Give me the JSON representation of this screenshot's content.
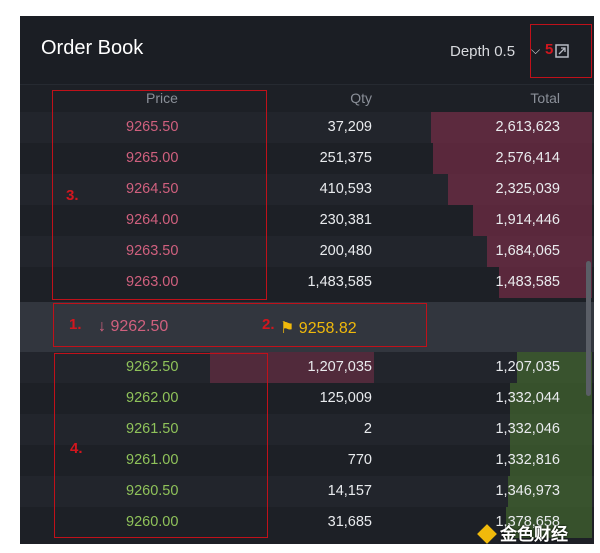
{
  "header": {
    "title": "Order Book",
    "depth_label": "Depth 0.5"
  },
  "columns": {
    "price": "Price",
    "qty": "Qty",
    "total": "Total"
  },
  "asks": [
    {
      "price": "9265.50",
      "qty": "37,209",
      "total": "2,613,623",
      "depth": 0.92
    },
    {
      "price": "9265.00",
      "qty": "251,375",
      "total": "2,576,414",
      "depth": 0.91
    },
    {
      "price": "9264.50",
      "qty": "410,593",
      "total": "2,325,039",
      "depth": 0.82
    },
    {
      "price": "9264.00",
      "qty": "230,381",
      "total": "1,914,446",
      "depth": 0.68
    },
    {
      "price": "9263.50",
      "qty": "200,480",
      "total": "1,684,065",
      "depth": 0.6
    },
    {
      "price": "9263.00",
      "qty": "1,483,585",
      "total": "1,483,585",
      "depth": 0.53
    }
  ],
  "mid": {
    "last_price": "9262.50",
    "mark_price": "9258.82"
  },
  "bids": [
    {
      "price": "9262.50",
      "qty": "1,207,035",
      "total": "1,207,035",
      "depth": 0.43
    },
    {
      "price": "9262.00",
      "qty": "125,009",
      "total": "1,332,044",
      "depth": 0.47
    },
    {
      "price": "9261.50",
      "qty": "2",
      "total": "1,332,046",
      "depth": 0.47
    },
    {
      "price": "9261.00",
      "qty": "770",
      "total": "1,332,816",
      "depth": 0.47
    },
    {
      "price": "9260.50",
      "qty": "14,157",
      "total": "1,346,973",
      "depth": 0.48
    },
    {
      "price": "9260.00",
      "qty": "31,685",
      "total": "1,378,658",
      "depth": 0.49
    }
  ],
  "annotations": [
    "1.",
    "2.",
    "3.",
    "4.",
    "5"
  ],
  "watermark": "金色财经",
  "colors": {
    "ask": "#d0607e",
    "bid": "#8fc25a",
    "mark": "#f0b90b",
    "annotation": "#c0111a"
  }
}
